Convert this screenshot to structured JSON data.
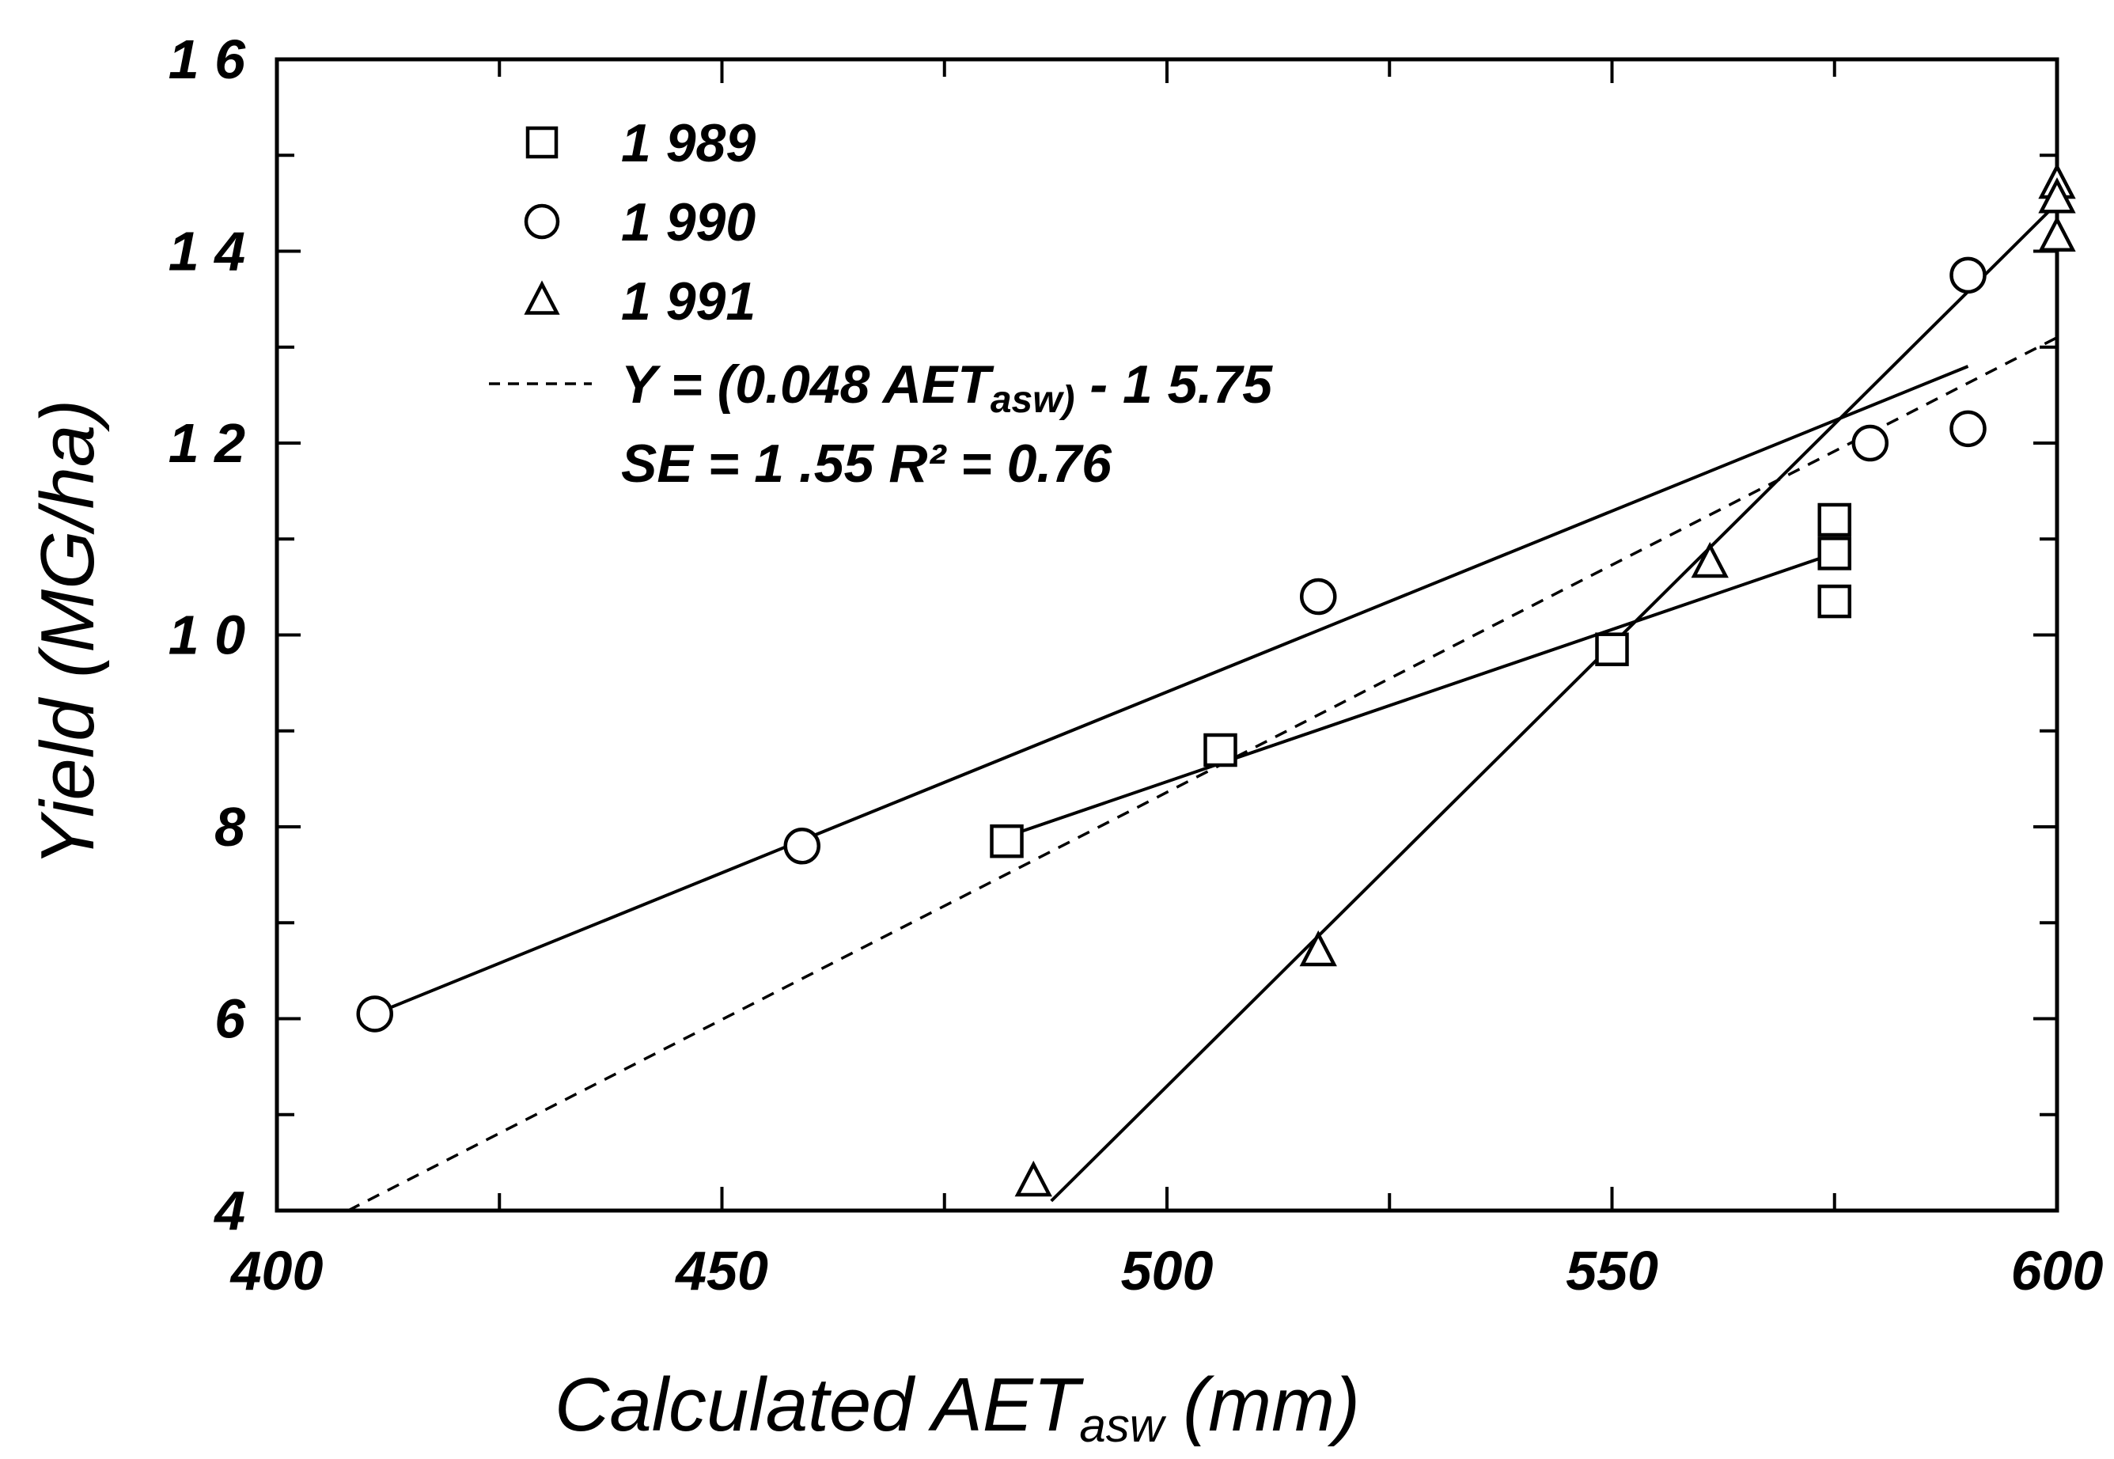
{
  "chart_data": {
    "type": "scatter",
    "xlabel": "Calculated AET",
    "xlabel_sub": "asw",
    "xlabel_unit": "(mm)",
    "ylabel": "Yield (MG/ha)",
    "xlim": [
      400,
      600
    ],
    "ylim": [
      4,
      16
    ],
    "x_ticks": [
      400,
      450,
      500,
      550,
      600
    ],
    "x_tick_labels": [
      "400",
      "450",
      "500",
      "550",
      "600"
    ],
    "y_ticks": [
      4,
      6,
      8,
      10,
      12,
      14,
      16
    ],
    "y_tick_labels": [
      "4",
      "6",
      "8",
      "1 0",
      "1 2",
      "1 4",
      "1 6"
    ],
    "x_minor_step": 25,
    "y_minor_step": 1,
    "grid": false,
    "legend_position": "top-left",
    "series": [
      {
        "name": "1 989",
        "marker": "square",
        "points": [
          [
            482,
            7.85
          ],
          [
            506,
            8.8
          ],
          [
            550,
            9.85
          ],
          [
            575,
            11.2
          ],
          [
            575,
            10.85
          ],
          [
            575,
            10.35
          ]
        ],
        "fit_line": [
          [
            482,
            7.9
          ],
          [
            575,
            10.85
          ]
        ]
      },
      {
        "name": "1 990",
        "marker": "circle",
        "points": [
          [
            411,
            6.05
          ],
          [
            459,
            7.8
          ],
          [
            517,
            10.4
          ],
          [
            579,
            12.0
          ],
          [
            590,
            13.75
          ],
          [
            590,
            12.15
          ]
        ],
        "fit_line": [
          [
            411,
            6.05
          ],
          [
            590,
            12.8
          ]
        ]
      },
      {
        "name": "1 991",
        "marker": "triangle",
        "points": [
          [
            485,
            4.3
          ],
          [
            517,
            6.7
          ],
          [
            561,
            10.75
          ],
          [
            600,
            14.7
          ],
          [
            600,
            14.55
          ],
          [
            600,
            14.15
          ]
        ],
        "fit_line": [
          [
            487,
            4.1
          ],
          [
            600,
            14.5
          ]
        ]
      }
    ],
    "overall_fit": {
      "style": "dashed",
      "equation_prefix": "Y = (0.048 AET",
      "equation_sub": "asw)",
      "equation_suffix": " - 1 5.75",
      "stats_text": "SE = 1 .55  R² = 0.76",
      "points": [
        [
          408,
          4.0
        ],
        [
          600,
          13.1
        ]
      ]
    }
  }
}
